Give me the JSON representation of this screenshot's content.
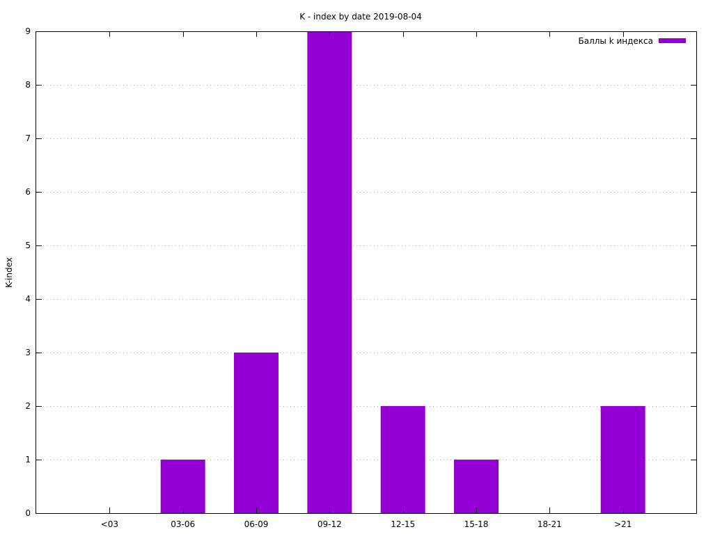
{
  "chart_data": {
    "type": "bar",
    "title": "K - index by date 2019-08-04",
    "xlabel": "",
    "ylabel": "K-index",
    "categories": [
      "<03",
      "03-06",
      "06-09",
      "09-12",
      "12-15",
      "15-18",
      "18-21",
      ">21"
    ],
    "series": [
      {
        "name": "Баллы k индекса",
        "values": [
          0,
          1,
          3,
          9,
          2,
          1,
          0,
          2
        ],
        "color": "#9400d3"
      }
    ],
    "ylim": [
      0,
      9
    ],
    "yticks": [
      "0",
      "1",
      "2",
      "3",
      "4",
      "5",
      "6",
      "7",
      "8",
      "9"
    ],
    "grid": true,
    "legend_position": "top-right"
  }
}
